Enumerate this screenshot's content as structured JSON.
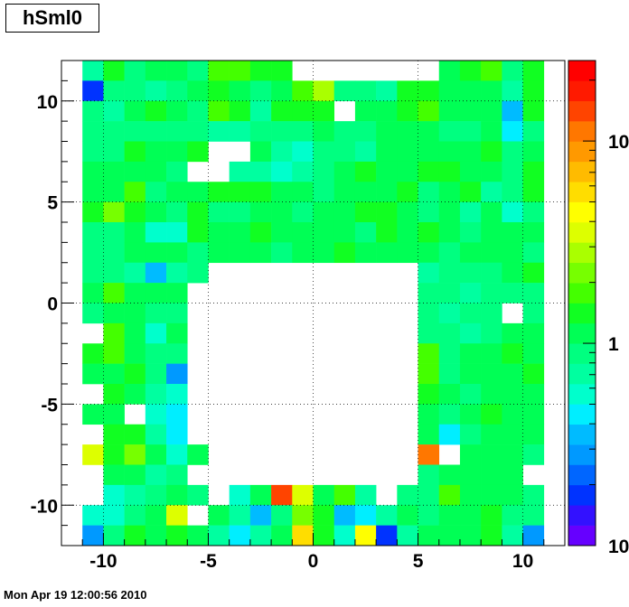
{
  "chart_data": {
    "type": "heatmap",
    "title": "hSml0",
    "xlim": [
      -12,
      12
    ],
    "ylim": [
      -12,
      12
    ],
    "x_ticks": [
      -10,
      -5,
      0,
      5,
      10
    ],
    "y_ticks": [
      -10,
      -5,
      0,
      5,
      10
    ],
    "z_scale": "log",
    "z_range": [
      0.1,
      25
    ],
    "z_tick_labels": [
      "10",
      "1",
      "10"
    ],
    "grid": true,
    "bin_width": 1,
    "x_bin_edges_start": -11,
    "y_bin_edges_start": -11,
    "palette": [
      "#6600ff",
      "#3311ff",
      "#0033ff",
      "#0066ff",
      "#0099ff",
      "#00bbff",
      "#00eeff",
      "#00ffcc",
      "#00ffa0",
      "#00ff80",
      "#00ff55",
      "#11ff22",
      "#44ff00",
      "#77ff00",
      "#aaff00",
      "#ddff00",
      "#ffff00",
      "#ffdd00",
      "#ffbb00",
      "#ff9900",
      "#ff7700",
      "#ff4400",
      "#ff1a00",
      "#ff0000"
    ],
    "z_levels": [
      [
        0,
        9,
        12,
        10,
        11,
        11,
        10,
        13,
        13,
        12,
        12,
        0,
        0,
        0,
        0,
        0,
        0,
        0,
        11,
        12,
        13,
        10,
        12,
        0
      ],
      [
        0,
        3,
        10,
        10,
        9,
        10,
        11,
        12,
        11,
        10,
        11,
        13,
        15,
        10,
        10,
        9,
        12,
        12,
        11,
        11,
        11,
        9,
        12,
        0
      ],
      [
        0,
        10,
        9,
        11,
        12,
        11,
        10,
        13,
        12,
        9,
        12,
        12,
        12,
        0,
        11,
        11,
        12,
        13,
        11,
        11,
        11,
        6,
        12,
        0
      ],
      [
        0,
        10,
        10,
        10,
        10,
        10,
        10,
        9,
        9,
        10,
        10,
        10,
        11,
        10,
        10,
        11,
        11,
        11,
        10,
        10,
        11,
        7,
        10,
        0
      ],
      [
        0,
        10,
        10,
        12,
        11,
        11,
        12,
        0,
        0,
        11,
        9,
        8,
        10,
        10,
        9,
        11,
        11,
        11,
        11,
        11,
        12,
        10,
        11,
        0
      ],
      [
        0,
        11,
        11,
        11,
        11,
        10,
        0,
        0,
        9,
        9,
        8,
        9,
        10,
        11,
        12,
        11,
        11,
        12,
        12,
        11,
        11,
        10,
        12,
        0
      ],
      [
        0,
        11,
        11,
        13,
        10,
        11,
        11,
        12,
        12,
        12,
        11,
        11,
        10,
        11,
        11,
        11,
        12,
        10,
        11,
        12,
        9,
        10,
        12,
        0
      ],
      [
        0,
        12,
        14,
        12,
        11,
        10,
        12,
        10,
        10,
        11,
        11,
        10,
        11,
        11,
        12,
        12,
        11,
        10,
        11,
        9,
        11,
        8,
        10,
        0
      ],
      [
        0,
        10,
        10,
        11,
        8,
        8,
        12,
        11,
        11,
        12,
        11,
        11,
        11,
        11,
        10,
        12,
        11,
        12,
        11,
        10,
        11,
        11,
        11,
        0
      ],
      [
        0,
        10,
        10,
        11,
        11,
        11,
        10,
        11,
        11,
        11,
        10,
        11,
        11,
        12,
        11,
        11,
        11,
        11,
        10,
        11,
        11,
        11,
        10,
        0
      ],
      [
        0,
        10,
        10,
        9,
        6,
        9,
        10,
        0,
        0,
        0,
        0,
        0,
        0,
        0,
        0,
        0,
        0,
        9,
        10,
        10,
        10,
        11,
        12,
        0
      ],
      [
        0,
        11,
        13,
        11,
        11,
        11,
        0,
        0,
        0,
        0,
        0,
        0,
        0,
        0,
        0,
        0,
        0,
        10,
        10,
        9,
        10,
        10,
        10,
        0
      ],
      [
        0,
        10,
        11,
        11,
        10,
        10,
        0,
        0,
        0,
        0,
        0,
        0,
        0,
        0,
        0,
        0,
        0,
        10,
        9,
        10,
        10,
        0,
        10,
        0
      ],
      [
        0,
        0,
        13,
        11,
        8,
        11,
        0,
        0,
        0,
        0,
        0,
        0,
        0,
        0,
        0,
        0,
        0,
        10,
        10,
        9,
        10,
        11,
        11,
        0
      ],
      [
        0,
        12,
        13,
        11,
        10,
        10,
        0,
        0,
        0,
        0,
        0,
        0,
        0,
        0,
        0,
        0,
        0,
        13,
        10,
        11,
        11,
        12,
        11,
        0
      ],
      [
        0,
        11,
        11,
        12,
        10,
        5,
        0,
        0,
        0,
        0,
        0,
        0,
        0,
        0,
        0,
        0,
        0,
        13,
        10,
        11,
        11,
        11,
        12,
        0
      ],
      [
        0,
        0,
        12,
        11,
        9,
        8,
        0,
        0,
        0,
        0,
        0,
        0,
        0,
        0,
        0,
        0,
        0,
        12,
        11,
        10,
        11,
        11,
        11,
        0
      ],
      [
        0,
        11,
        11,
        0,
        8,
        7,
        0,
        0,
        0,
        0,
        0,
        0,
        0,
        0,
        0,
        0,
        0,
        11,
        10,
        11,
        12,
        11,
        11,
        0
      ],
      [
        0,
        0,
        12,
        12,
        9,
        7,
        0,
        0,
        0,
        0,
        0,
        0,
        0,
        0,
        0,
        0,
        0,
        11,
        7,
        10,
        11,
        11,
        11,
        0
      ],
      [
        0,
        16,
        12,
        14,
        11,
        8,
        11,
        0,
        0,
        0,
        0,
        0,
        0,
        0,
        0,
        0,
        0,
        21,
        0,
        11,
        11,
        11,
        10,
        0
      ],
      [
        0,
        0,
        11,
        11,
        9,
        10,
        0,
        0,
        0,
        0,
        0,
        0,
        0,
        0,
        0,
        0,
        0,
        10,
        11,
        11,
        11,
        11,
        0,
        0
      ],
      [
        0,
        0,
        8,
        9,
        10,
        11,
        10,
        0,
        8,
        11,
        22,
        16,
        11,
        13,
        9,
        0,
        10,
        10,
        13,
        11,
        11,
        11,
        10,
        0
      ],
      [
        0,
        8,
        8,
        10,
        11,
        16,
        0,
        11,
        9,
        6,
        10,
        14,
        12,
        6,
        7,
        9,
        11,
        10,
        11,
        11,
        12,
        10,
        10,
        0
      ],
      [
        0,
        5,
        10,
        12,
        11,
        12,
        11,
        9,
        7,
        9,
        11,
        18,
        12,
        8,
        17,
        3,
        9,
        11,
        11,
        11,
        12,
        9,
        5,
        0
      ]
    ]
  },
  "timestamp": "Mon Apr 19 12:00:56 2010"
}
